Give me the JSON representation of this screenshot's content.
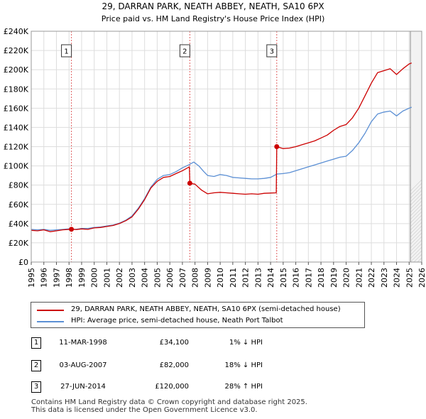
{
  "chart_data": {
    "type": "line",
    "title": "29, DARRAN PARK, NEATH ABBEY, NEATH, SA10 6PX",
    "subtitle": "Price paid vs. HM Land Registry's House Price Index (HPI)",
    "xlim": [
      1995,
      2026
    ],
    "ylim": [
      0,
      240000
    ],
    "x_ticks": [
      1995,
      1996,
      1997,
      1998,
      1999,
      2000,
      2001,
      2002,
      2003,
      2004,
      2005,
      2006,
      2007,
      2008,
      2009,
      2010,
      2011,
      2012,
      2013,
      2014,
      2015,
      2016,
      2017,
      2018,
      2019,
      2020,
      2021,
      2022,
      2023,
      2024,
      2025,
      2026
    ],
    "y_ticks": [
      0,
      20000,
      40000,
      60000,
      80000,
      100000,
      120000,
      140000,
      160000,
      180000,
      200000,
      220000,
      240000
    ],
    "y_tick_labels": [
      "£0",
      "£20K",
      "£40K",
      "£60K",
      "£80K",
      "£100K",
      "£120K",
      "£140K",
      "£160K",
      "£180K",
      "£200K",
      "£220K",
      "£240K"
    ],
    "future_start": 2025.1,
    "series": [
      {
        "name": "29, DARRAN PARK, NEATH ABBEY, NEATH, SA10 6PX (semi-detached house)",
        "color": "#cc0000",
        "points": [
          [
            1995.0,
            33000
          ],
          [
            1995.5,
            32500
          ],
          [
            1996.0,
            33500
          ],
          [
            1996.5,
            31500
          ],
          [
            1997.0,
            32500
          ],
          [
            1997.5,
            33500
          ],
          [
            1998.19,
            34100
          ],
          [
            1998.6,
            33800
          ],
          [
            1999.0,
            34500
          ],
          [
            1999.5,
            34000
          ],
          [
            2000.0,
            35500
          ],
          [
            2000.5,
            36000
          ],
          [
            2001.0,
            37000
          ],
          [
            2001.5,
            38000
          ],
          [
            2002.0,
            40000
          ],
          [
            2002.5,
            43000
          ],
          [
            2003.0,
            47000
          ],
          [
            2003.5,
            55000
          ],
          [
            2004.0,
            65000
          ],
          [
            2004.5,
            77000
          ],
          [
            2005.0,
            84000
          ],
          [
            2005.5,
            88000
          ],
          [
            2006.0,
            89000
          ],
          [
            2006.5,
            92000
          ],
          [
            2007.0,
            95000
          ],
          [
            2007.55,
            99000
          ],
          [
            2007.59,
            82000
          ],
          [
            2008.0,
            81000
          ],
          [
            2008.5,
            75000
          ],
          [
            2009.0,
            71000
          ],
          [
            2009.5,
            72000
          ],
          [
            2010.0,
            72500
          ],
          [
            2010.5,
            72000
          ],
          [
            2011.0,
            71500
          ],
          [
            2011.5,
            71000
          ],
          [
            2012.0,
            70500
          ],
          [
            2012.5,
            71000
          ],
          [
            2013.0,
            70500
          ],
          [
            2013.5,
            71500
          ],
          [
            2014.45,
            72000
          ],
          [
            2014.49,
            120000
          ],
          [
            2015.0,
            118000
          ],
          [
            2015.5,
            118500
          ],
          [
            2016.0,
            120000
          ],
          [
            2016.5,
            122000
          ],
          [
            2017.0,
            124000
          ],
          [
            2017.5,
            126000
          ],
          [
            2018.0,
            129000
          ],
          [
            2018.5,
            132000
          ],
          [
            2019.0,
            137000
          ],
          [
            2019.5,
            141000
          ],
          [
            2020.0,
            143000
          ],
          [
            2020.5,
            150000
          ],
          [
            2021.0,
            160000
          ],
          [
            2021.5,
            173000
          ],
          [
            2022.0,
            186000
          ],
          [
            2022.5,
            197000
          ],
          [
            2023.0,
            199000
          ],
          [
            2023.5,
            201000
          ],
          [
            2024.0,
            195000
          ],
          [
            2024.5,
            201000
          ],
          [
            2025.0,
            206000
          ],
          [
            2025.2,
            207000
          ]
        ]
      },
      {
        "name": "HPI: Average price, semi-detached house, Neath Port Talbot",
        "color": "#5b8fd4",
        "points": [
          [
            1995.0,
            34000
          ],
          [
            1995.5,
            33500
          ],
          [
            1996.0,
            34000
          ],
          [
            1996.5,
            33000
          ],
          [
            1997.0,
            33500
          ],
          [
            1997.5,
            34000
          ],
          [
            1998.0,
            34500
          ],
          [
            1998.5,
            34000
          ],
          [
            1999.0,
            35000
          ],
          [
            1999.5,
            35000
          ],
          [
            2000.0,
            36000
          ],
          [
            2000.5,
            36500
          ],
          [
            2001.0,
            37500
          ],
          [
            2001.5,
            38500
          ],
          [
            2002.0,
            40500
          ],
          [
            2002.5,
            43500
          ],
          [
            2003.0,
            48000
          ],
          [
            2003.5,
            56000
          ],
          [
            2004.0,
            66000
          ],
          [
            2004.5,
            78000
          ],
          [
            2005.0,
            86000
          ],
          [
            2005.5,
            90000
          ],
          [
            2006.0,
            91000
          ],
          [
            2006.5,
            94000
          ],
          [
            2007.0,
            98000
          ],
          [
            2007.5,
            101000
          ],
          [
            2007.9,
            104000
          ],
          [
            2008.3,
            100000
          ],
          [
            2008.7,
            94000
          ],
          [
            2009.0,
            90000
          ],
          [
            2009.5,
            89000
          ],
          [
            2010.0,
            91000
          ],
          [
            2010.5,
            90000
          ],
          [
            2011.0,
            88000
          ],
          [
            2011.5,
            87500
          ],
          [
            2012.0,
            87000
          ],
          [
            2012.5,
            86500
          ],
          [
            2013.0,
            86500
          ],
          [
            2013.5,
            87000
          ],
          [
            2014.0,
            88000
          ],
          [
            2014.5,
            91500
          ],
          [
            2015.0,
            92000
          ],
          [
            2015.5,
            93000
          ],
          [
            2016.0,
            95000
          ],
          [
            2016.5,
            97000
          ],
          [
            2017.0,
            99000
          ],
          [
            2017.5,
            101000
          ],
          [
            2018.0,
            103000
          ],
          [
            2018.5,
            105000
          ],
          [
            2019.0,
            107000
          ],
          [
            2019.5,
            109000
          ],
          [
            2020.0,
            110000
          ],
          [
            2020.5,
            116000
          ],
          [
            2021.0,
            124000
          ],
          [
            2021.5,
            134000
          ],
          [
            2022.0,
            146000
          ],
          [
            2022.5,
            154000
          ],
          [
            2023.0,
            156000
          ],
          [
            2023.5,
            157000
          ],
          [
            2024.0,
            152000
          ],
          [
            2024.5,
            157000
          ],
          [
            2025.0,
            160000
          ],
          [
            2025.2,
            161000
          ]
        ]
      }
    ],
    "markers": [
      {
        "label": "1",
        "x": 1998.19,
        "value": 34100
      },
      {
        "label": "2",
        "x": 2007.59,
        "value": 82000
      },
      {
        "label": "3",
        "x": 2014.49,
        "value": 120000
      }
    ]
  },
  "legend": {
    "items": [
      {
        "label": "29, DARRAN PARK, NEATH ABBEY, NEATH, SA10 6PX (semi-detached house)",
        "color": "#cc0000"
      },
      {
        "label": "HPI: Average price, semi-detached house, Neath Port Talbot",
        "color": "#5b8fd4"
      }
    ]
  },
  "transactions": [
    {
      "num": "1",
      "date": "11-MAR-1998",
      "price": "£34,100",
      "hpi": "1% ↓ HPI"
    },
    {
      "num": "2",
      "date": "03-AUG-2007",
      "price": "£82,000",
      "hpi": "18% ↓ HPI"
    },
    {
      "num": "3",
      "date": "27-JUN-2014",
      "price": "£120,000",
      "hpi": "28% ↑ HPI"
    }
  ],
  "footer": {
    "line1": "Contains HM Land Registry data © Crown copyright and database right 2025.",
    "line2": "This data is licensed under the Open Government Licence v3.0."
  }
}
